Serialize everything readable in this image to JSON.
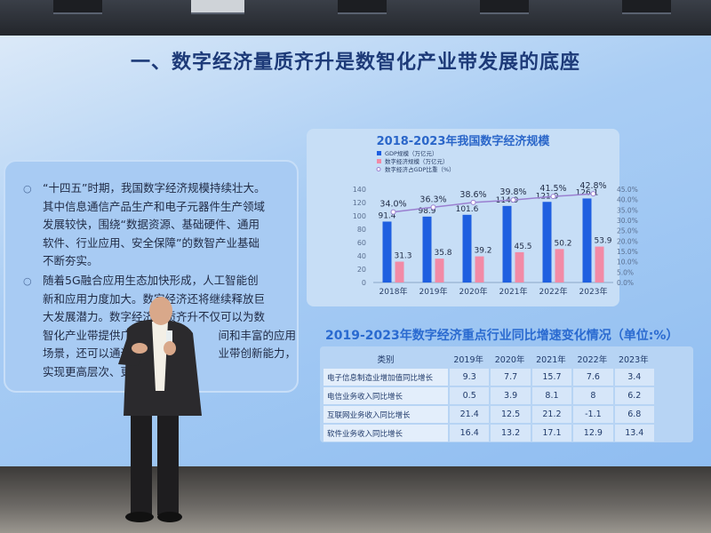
{
  "slide": {
    "title": "一、数字经济量质齐升是数智化产业带发展的底座",
    "paragraph1": [
      "“十四五”时期，我国数字经济规模持续壮大。",
      "其中信息通信产品生产和电子元器件生产领域",
      "发展较快，围绕“数据资源、基础硬件、通用",
      "软件、行业应用、安全保障”的数智产业基础",
      "不断夯实。"
    ],
    "paragraph2": [
      "随着5G融合应用生态加快形成，人工智能创",
      "新和应用力度加大。数字经济还将继续释放巨",
      "大发展潜力。数字经济量质齐升不仅可以为数",
      "智化产业带提供广阔",
      "场景，还可以通过",
      "实现更高层次、更"
    ],
    "paragraph2_tails": [
      "",
      "",
      "",
      "间和丰富的应用",
      "业带创新能力，",
      ""
    ]
  },
  "chart_data": {
    "type": "bar",
    "title": "2018-2023年我国数字经济规模",
    "categories": [
      "2018年",
      "2019年",
      "2020年",
      "2021年",
      "2022年",
      "2023年"
    ],
    "series": [
      {
        "name": "GDP规模（万亿元）",
        "type": "bar",
        "axis": "left",
        "color": "#1f5fe0",
        "values": [
          91.4,
          98.9,
          101.6,
          114.9,
          121.0,
          126.1
        ],
        "labels": [
          "91.4",
          "98.9",
          "101.6",
          "114.9",
          "121.0",
          "126.1"
        ]
      },
      {
        "name": "数字经济规模（万亿元）",
        "type": "bar",
        "axis": "left",
        "color": "#f28aa6",
        "values": [
          31.3,
          35.8,
          39.2,
          45.5,
          50.2,
          53.9
        ],
        "labels": [
          "31.3",
          "35.8",
          "39.2",
          "45.5",
          "50.2",
          "53.9"
        ]
      },
      {
        "name": "数字经济占GDP比重（%）",
        "type": "line",
        "axis": "right",
        "color": "#9a7fd0",
        "values": [
          34.0,
          36.3,
          38.6,
          39.8,
          41.5,
          42.8
        ],
        "labels": [
          "34.0%",
          "36.3%",
          "38.6%",
          "39.8%",
          "41.5%",
          "42.8%"
        ]
      }
    ],
    "ylim": [
      0,
      140
    ],
    "yticks": [
      "0",
      "20",
      "40",
      "60",
      "80",
      "100",
      "120",
      "140"
    ],
    "y2lim": [
      0,
      45
    ],
    "y2ticks": [
      "0.0%",
      "5.0%",
      "10.0%",
      "15.0%",
      "20.0%",
      "25.0%",
      "30.0%",
      "35.0%",
      "40.0%",
      "45.0%"
    ],
    "legend": "top-left",
    "grid": false
  },
  "table": {
    "title": "2019-2023年数字经济重点行业同比增速变化情况（单位:%）",
    "headers": [
      "类别",
      "2019年",
      "2020年",
      "2021年",
      "2022年",
      "2023年"
    ],
    "rows": [
      [
        "电子信息制造业增加值同比增长",
        "9.3",
        "7.7",
        "15.7",
        "7.6",
        "3.4"
      ],
      [
        "电信业务收入同比增长",
        "0.5",
        "3.9",
        "8.1",
        "8",
        "6.2"
      ],
      [
        "互联网业务收入同比增长",
        "21.4",
        "12.5",
        "21.2",
        "-1.1",
        "6.8"
      ],
      [
        "软件业务收入同比增长",
        "16.4",
        "13.2",
        "17.1",
        "12.9",
        "13.4"
      ]
    ]
  }
}
